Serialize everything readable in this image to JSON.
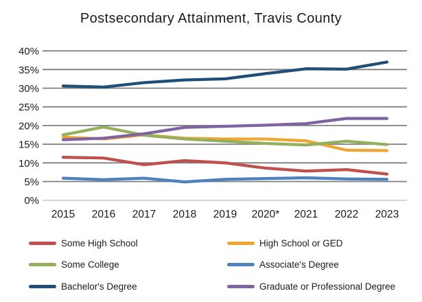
{
  "title": "Postsecondary Attainment, Travis County",
  "chart_data": {
    "type": "line",
    "title": "Postsecondary Attainment, Travis County",
    "x": [
      "2015",
      "2016",
      "2017",
      "2018",
      "2019",
      "2020*",
      "2021",
      "2022",
      "2023"
    ],
    "series": [
      {
        "name": "Some High School",
        "color": "#C0504D",
        "values": [
          11.5,
          11.3,
          9.5,
          10.6,
          10.0,
          8.6,
          7.8,
          8.2,
          7.0
        ]
      },
      {
        "name": "High School or GED",
        "color": "#EFA633",
        "values": [
          16.9,
          16.4,
          17.5,
          16.6,
          16.4,
          16.4,
          15.9,
          13.4,
          13.3
        ]
      },
      {
        "name": "Some College",
        "color": "#94B05E",
        "values": [
          17.5,
          19.6,
          17.4,
          16.4,
          15.8,
          15.2,
          14.8,
          15.8,
          14.9
        ]
      },
      {
        "name": "Associate's Degree",
        "color": "#4F81BD",
        "values": [
          5.9,
          5.5,
          5.9,
          4.9,
          5.6,
          5.8,
          6.0,
          5.7,
          5.6
        ]
      },
      {
        "name": "Bachelor's Degree",
        "color": "#1F4E79",
        "values": [
          30.6,
          30.3,
          31.5,
          32.2,
          32.5,
          33.9,
          35.2,
          35.1,
          37.0
        ]
      },
      {
        "name": "Graduate or Professional Degree",
        "color": "#8064A2",
        "values": [
          16.2,
          16.6,
          17.8,
          19.5,
          19.8,
          20.1,
          20.5,
          21.9,
          21.9
        ]
      }
    ],
    "xlabel": "",
    "ylabel": "",
    "ylim": [
      0,
      40
    ],
    "ytick_step": 5,
    "y_tick_labels": [
      "0%",
      "5%",
      "10%",
      "15%",
      "20%",
      "25%",
      "30%",
      "35%",
      "40%"
    ],
    "grid": "horizontal-only",
    "gridline_color": "#7F7F7F",
    "baseline_color": "#C9C9C9",
    "legend_position": "bottom",
    "legend_columns": [
      [
        "Some High School",
        "Some College",
        "Bachelor's Degree"
      ],
      [
        "High School or GED",
        "Associate's Degree",
        "Graduate or Professional Degree"
      ]
    ]
  }
}
